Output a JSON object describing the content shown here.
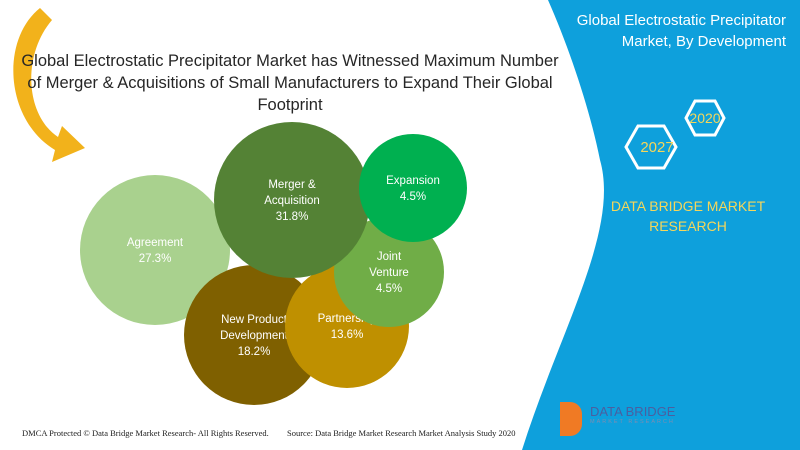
{
  "title": "Global Electrostatic Precipitator Market has Witnessed Maximum Number of Merger & Acquisitions of Small Manufacturers to Expand Their Global Footprint",
  "panel": {
    "title": "Global Electrostatic Precipitator Market, By Development",
    "year_2020": "2020",
    "year_2027": "2027",
    "brand": "DATA BRIDGE MARKET RESEARCH",
    "panel_color": "#0ea0dc",
    "hex_text_color": "#f5d65a"
  },
  "footer": {
    "copyright": "DMCA Protected © Data Bridge Market Research- All Rights Reserved.",
    "source": "Source: Data Bridge Market Research Market Analysis Study 2020"
  },
  "logo": {
    "name": "DATA BRIDGE",
    "tagline": "MARKET RESEARCH"
  },
  "chart_data": {
    "type": "bubble",
    "items": [
      {
        "label": "Agreement",
        "value": 27.3,
        "display": "27.3%",
        "color": "#a9d18e"
      },
      {
        "label": "Merger & Acquisition",
        "value": 31.8,
        "display": "31.8%",
        "color": "#548235"
      },
      {
        "label": "Expansion",
        "value": 4.5,
        "display": "4.5%",
        "color": "#00b050"
      },
      {
        "label": "Joint Venture",
        "value": 4.5,
        "display": "4.5%",
        "color": "#70ad47"
      },
      {
        "label": "New Product Development",
        "value": 18.2,
        "display": "18.2%",
        "color": "#7f6000"
      },
      {
        "label": "Partnership",
        "value": 13.6,
        "display": "13.6%",
        "color": "#bf9000"
      }
    ]
  }
}
